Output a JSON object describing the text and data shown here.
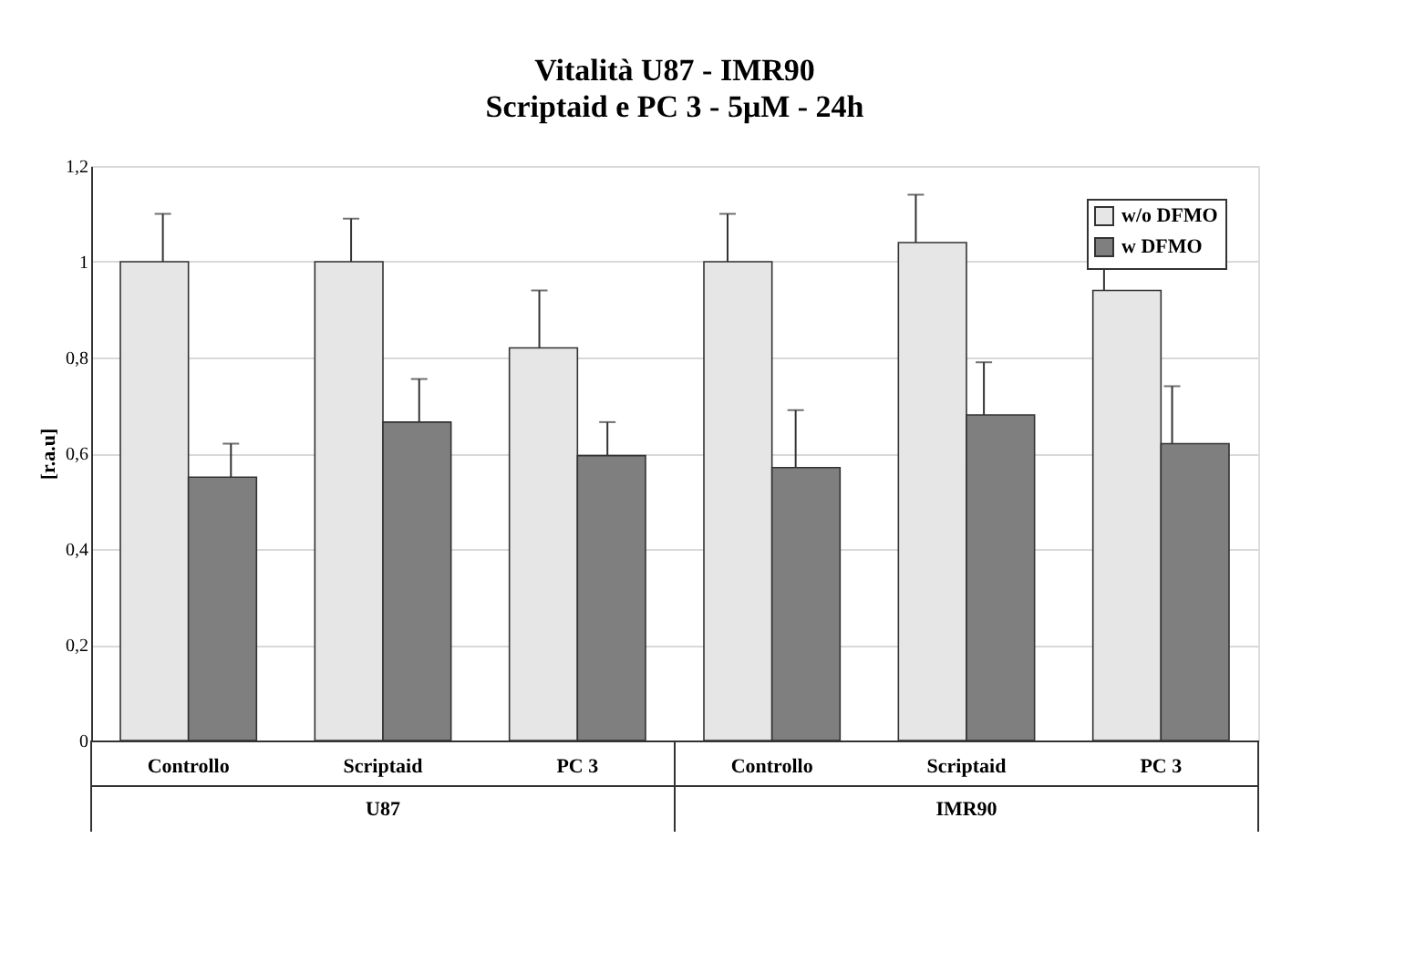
{
  "chart_data": {
    "type": "bar",
    "title": "Vitalità U87 - IMR90",
    "subtitle": "Scriptaid e PC 3 - 5μM - 24h",
    "ylabel": "[r.a.u]",
    "categories": [
      "Controllo",
      "Scriptaid",
      "PC 3",
      "Controllo",
      "Scriptaid",
      "PC 3"
    ],
    "series": [
      {
        "name": "w/o DFMO",
        "color": "#e6e6e6",
        "values": [
          1.0,
          1.0,
          0.82,
          1.0,
          1.04,
          0.94
        ],
        "errors": [
          0.1,
          0.09,
          0.12,
          0.1,
          0.1,
          0.1
        ]
      },
      {
        "name": "w DFMO",
        "color": "#7f7f7f",
        "values": [
          0.55,
          0.665,
          0.595,
          0.57,
          0.68,
          0.62
        ],
        "errors": [
          0.07,
          0.09,
          0.07,
          0.12,
          0.11,
          0.12
        ]
      }
    ],
    "ylim": [
      0,
      1.2
    ],
    "yticks": [
      0,
      {
        "value": 0.2,
        "label": "0,2"
      },
      {
        "value": 0.4,
        "label": "0,4"
      },
      {
        "value": 0.6,
        "label": "0,6"
      },
      {
        "value": 0.8,
        "label": "0,8"
      },
      1,
      {
        "value": 1.2,
        "label": "1,2"
      }
    ],
    "annotations": [
      "U87",
      "IMR90"
    ],
    "grid": "y",
    "legend": "top right"
  }
}
